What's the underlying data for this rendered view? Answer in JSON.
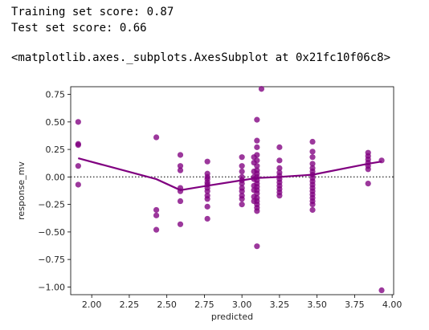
{
  "output": {
    "train_score": "Training set score: 0.87",
    "test_score": "Test set score: 0.66",
    "repr": "<matplotlib.axes._subplots.AxesSubplot at 0x21fc10f06c8>"
  },
  "chart_data": {
    "type": "scatter",
    "title": "",
    "xlabel": "predicted",
    "ylabel": "response_mv",
    "xlim": [
      1.86,
      4.01
    ],
    "ylim": [
      -1.07,
      0.82
    ],
    "xticks": [
      "2.00",
      "2.25",
      "2.50",
      "2.75",
      "3.00",
      "3.25",
      "3.50",
      "3.75",
      "4.00"
    ],
    "xtick_values": [
      2.0,
      2.25,
      2.5,
      2.75,
      3.0,
      3.25,
      3.5,
      3.75,
      4.0
    ],
    "yticks": [
      "0.75",
      "0.50",
      "0.25",
      "0.00",
      "−0.25",
      "−0.50",
      "−0.75",
      "−1.00"
    ],
    "ytick_values": [
      0.75,
      0.5,
      0.25,
      0.0,
      -0.25,
      -0.5,
      -0.75,
      -1.0
    ],
    "reference_line_y": 0.0,
    "color": "#800080",
    "grid": false,
    "points": [
      [
        1.91,
        0.5
      ],
      [
        1.91,
        0.3
      ],
      [
        1.91,
        0.29
      ],
      [
        1.91,
        0.1
      ],
      [
        1.91,
        -0.07
      ],
      [
        2.43,
        0.36
      ],
      [
        2.43,
        -0.3
      ],
      [
        2.43,
        -0.35
      ],
      [
        2.43,
        -0.48
      ],
      [
        2.59,
        0.2
      ],
      [
        2.59,
        0.1
      ],
      [
        2.59,
        0.06
      ],
      [
        2.59,
        -0.1
      ],
      [
        2.59,
        -0.13
      ],
      [
        2.59,
        -0.22
      ],
      [
        2.59,
        -0.43
      ],
      [
        2.77,
        0.14
      ],
      [
        2.77,
        0.03
      ],
      [
        2.77,
        0.0
      ],
      [
        2.77,
        -0.02
      ],
      [
        2.77,
        -0.05
      ],
      [
        2.77,
        -0.07
      ],
      [
        2.77,
        -0.1
      ],
      [
        2.77,
        -0.13
      ],
      [
        2.77,
        -0.17
      ],
      [
        2.77,
        -0.2
      ],
      [
        2.77,
        -0.27
      ],
      [
        2.77,
        -0.38
      ],
      [
        3.0,
        0.18
      ],
      [
        3.0,
        0.1
      ],
      [
        3.0,
        0.05
      ],
      [
        3.0,
        0.0
      ],
      [
        3.0,
        -0.03
      ],
      [
        3.0,
        -0.06
      ],
      [
        3.0,
        -0.1
      ],
      [
        3.0,
        -0.13
      ],
      [
        3.0,
        -0.17
      ],
      [
        3.0,
        -0.2
      ],
      [
        3.0,
        -0.25
      ],
      [
        3.08,
        0.18
      ],
      [
        3.08,
        0.13
      ],
      [
        3.08,
        0.05
      ],
      [
        3.08,
        0.0
      ],
      [
        3.08,
        -0.02
      ],
      [
        3.08,
        -0.08
      ],
      [
        3.08,
        -0.12
      ],
      [
        3.08,
        -0.18
      ],
      [
        3.08,
        -0.22
      ],
      [
        3.1,
        0.52
      ],
      [
        3.1,
        0.33
      ],
      [
        3.1,
        0.27
      ],
      [
        3.1,
        0.2
      ],
      [
        3.1,
        0.15
      ],
      [
        3.1,
        0.1
      ],
      [
        3.1,
        0.06
      ],
      [
        3.1,
        0.03
      ],
      [
        3.1,
        0.0
      ],
      [
        3.1,
        -0.03
      ],
      [
        3.1,
        -0.06
      ],
      [
        3.1,
        -0.09
      ],
      [
        3.1,
        -0.12
      ],
      [
        3.1,
        -0.15
      ],
      [
        3.1,
        -0.19
      ],
      [
        3.1,
        -0.22
      ],
      [
        3.1,
        -0.25
      ],
      [
        3.1,
        -0.28
      ],
      [
        3.1,
        -0.31
      ],
      [
        3.1,
        -0.63
      ],
      [
        3.13,
        0.8
      ],
      [
        3.25,
        0.27
      ],
      [
        3.25,
        0.15
      ],
      [
        3.25,
        0.08
      ],
      [
        3.25,
        0.04
      ],
      [
        3.25,
        0.01
      ],
      [
        3.25,
        -0.02
      ],
      [
        3.25,
        -0.05
      ],
      [
        3.25,
        -0.08
      ],
      [
        3.25,
        -0.11
      ],
      [
        3.25,
        -0.14
      ],
      [
        3.25,
        -0.17
      ],
      [
        3.47,
        0.32
      ],
      [
        3.47,
        0.23
      ],
      [
        3.47,
        0.18
      ],
      [
        3.47,
        0.12
      ],
      [
        3.47,
        0.08
      ],
      [
        3.47,
        0.05
      ],
      [
        3.47,
        0.02
      ],
      [
        3.47,
        -0.01
      ],
      [
        3.47,
        -0.04
      ],
      [
        3.47,
        -0.07
      ],
      [
        3.47,
        -0.1
      ],
      [
        3.47,
        -0.13
      ],
      [
        3.47,
        -0.16
      ],
      [
        3.47,
        -0.19
      ],
      [
        3.47,
        -0.22
      ],
      [
        3.47,
        -0.25
      ],
      [
        3.47,
        -0.3
      ],
      [
        3.84,
        0.22
      ],
      [
        3.84,
        0.19
      ],
      [
        3.84,
        0.16
      ],
      [
        3.84,
        0.13
      ],
      [
        3.84,
        0.1
      ],
      [
        3.84,
        0.07
      ],
      [
        3.84,
        -0.06
      ],
      [
        3.93,
        0.15
      ],
      [
        3.93,
        -1.03
      ]
    ],
    "lowess_line": [
      [
        1.91,
        0.17
      ],
      [
        2.43,
        -0.02
      ],
      [
        2.59,
        -0.12
      ],
      [
        2.77,
        -0.08
      ],
      [
        3.0,
        -0.03
      ],
      [
        3.1,
        -0.01
      ],
      [
        3.25,
        0.0
      ],
      [
        3.47,
        0.02
      ],
      [
        3.84,
        0.12
      ],
      [
        3.93,
        0.14
      ]
    ]
  }
}
